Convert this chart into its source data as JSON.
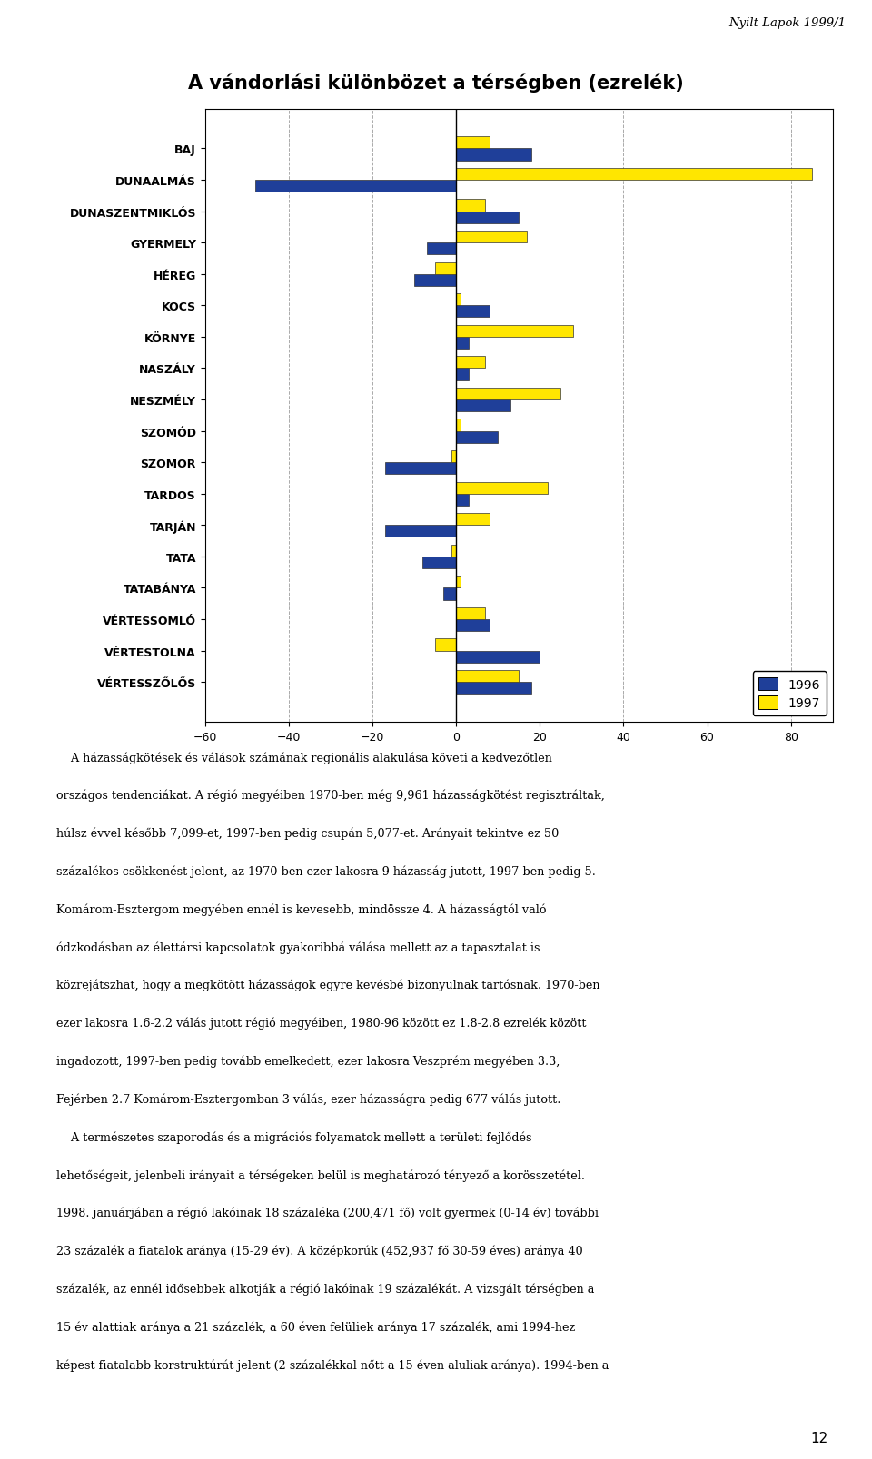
{
  "title": "A vándorlási különbözet a térségben (ezrelék)",
  "header": "Nyilt Lapok 1999/1",
  "categories": [
    "BAJ",
    "DUNAALMÁS",
    "DUNASZENTMIKLÓS",
    "GYERMELY",
    "HÉREG",
    "KOCS",
    "KÖRNYE",
    "NASZÁLY",
    "NESZMÉLY",
    "SZOMÓD",
    "SZOMOR",
    "TARDOS",
    "TARJÁN",
    "TATA",
    "TATABÁNYA",
    "VÉRTESSOMLÓ",
    "VÉRTESTOLNA",
    "VÉRTESSZŐLŐS"
  ],
  "values_1996": [
    18,
    -48,
    15,
    -7,
    -10,
    8,
    3,
    3,
    13,
    10,
    -17,
    3,
    -17,
    -8,
    -3,
    8,
    20,
    18
  ],
  "values_1997": [
    8,
    85,
    7,
    17,
    -5,
    1,
    28,
    7,
    25,
    1,
    -1,
    22,
    8,
    -1,
    1,
    7,
    -5,
    15
  ],
  "color_1996": "#1F3F99",
  "color_1997": "#FFE600",
  "xlim": [
    -60,
    90
  ],
  "xticks": [
    -60,
    -40,
    -20,
    0,
    20,
    40,
    60,
    80
  ],
  "page_number": "12",
  "text_lines": [
    "    A házasságkötések és válások számának regionális alakulása követi a kedvezőtlen",
    "országos tendenciákat. A régió megyéiben 1970-ben még 9,961 házasságkötést regisztráltak,",
    "húlsz évvel később 7,099-et, 1997-ben pedig csupán 5,077-et. Arányait tekintve ez 50",
    "százalékos csökkenést jelent, az 1970-ben ezer lakosra 9 házasság jutott, 1997-ben pedig 5.",
    "Komárom-Esztergom megyében ennél is kevesebb, mindössze 4. A házasságtól való",
    "ódzkodásban az élettársi kapcsolatok gyakoribbá válása mellett az a tapasztalat is",
    "közrejátszhat, hogy a megkötött házasságok egyre kevésbé bizonyulnak tartósnak. 1970-ben",
    "ezer lakosra 1.6-2.2 válás jutott régió megyéiben, 1980-96 között ez 1.8-2.8 ezrelék között",
    "ingadozott, 1997-ben pedig tovább emelkedett, ezer lakosra Veszprém megyében 3.3,",
    "Fejérben 2.7 Komárom-Esztergomban 3 válás, ezer házasságra pedig 677 válás jutott.",
    "    A természetes szaporodás és a migrációs folyamatok mellett a területi fejlődés",
    "lehetőségeit, jelenbeli irányait a térségeken belül is meghatározó tényező a korösszetétel.",
    "1998. januárjában a régió lakóinak 18 százaléka (200,471 fő) volt gyermek (0-14 év) további",
    "23 százalék a fiatalok aránya (15-29 év). A középkorúk (452,937 fő 30-59 éves) aránya 40",
    "százalék, az ennél idősebbek alkotják a régió lakóinak 19 százalékát. A vizsgált térségben a",
    "15 év alattiak aránya a 21 százalék, a 60 éven felüliek aránya 17 százalék, ami 1994-hez",
    "képest fiatalabb korstruktúrát jelent (2 százalékkal nőtt a 15 éven aluliak aránya). 1994-ben a"
  ]
}
